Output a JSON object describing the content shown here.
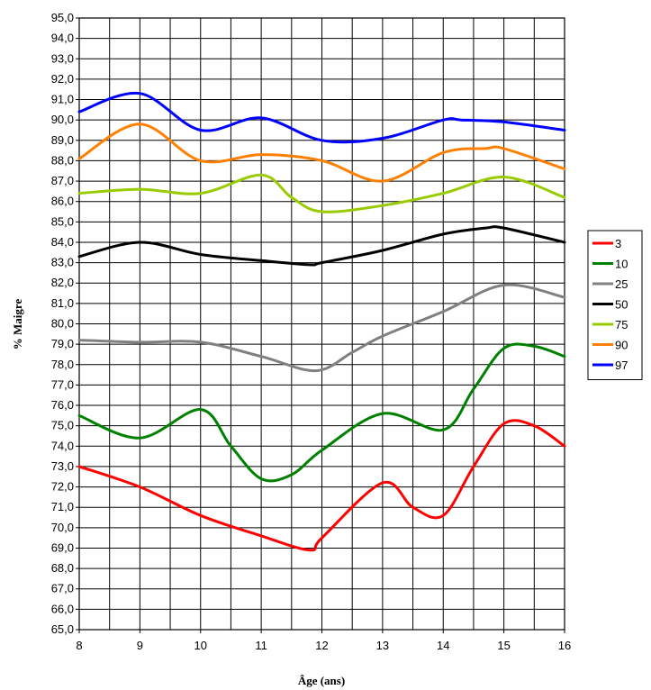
{
  "chart_data": {
    "type": "line",
    "title": "",
    "xlabel": "Âge (ans)",
    "ylabel": "% Maigre",
    "xlim": [
      8,
      16
    ],
    "ylim": [
      65,
      95
    ],
    "x_ticks": [
      "8",
      "9",
      "10",
      "11",
      "12",
      "13",
      "14",
      "15",
      "16"
    ],
    "y_ticks": [
      "65,0",
      "66,0",
      "67,0",
      "68,0",
      "69,0",
      "70,0",
      "71,0",
      "72,0",
      "73,0",
      "74,0",
      "75,0",
      "76,0",
      "77,0",
      "78,0",
      "79,0",
      "80,0",
      "81,0",
      "82,0",
      "83,0",
      "84,0",
      "85,0",
      "86,0",
      "87,0",
      "88,0",
      "89,0",
      "90,0",
      "91,0",
      "92,0",
      "93,0",
      "94,0",
      "95,0"
    ],
    "grid": true,
    "x_grid_step": 0.5,
    "legend_position": "right",
    "series": [
      {
        "name": "3",
        "color": "#ff0000",
        "x": [
          8,
          9,
          10,
          11,
          11.8,
          12,
          13,
          13.5,
          14,
          14.5,
          15,
          15.5,
          16
        ],
        "y": [
          73.0,
          72.0,
          70.6,
          69.6,
          68.9,
          69.5,
          72.2,
          71.0,
          70.6,
          73.0,
          75.1,
          75.0,
          74.0
        ]
      },
      {
        "name": "10",
        "color": "#008000",
        "x": [
          8,
          9,
          10,
          10.5,
          11,
          11.5,
          12,
          13,
          14,
          14.5,
          15,
          15.5,
          16
        ],
        "y": [
          75.5,
          74.4,
          75.8,
          74.0,
          72.4,
          72.6,
          73.8,
          75.6,
          74.8,
          76.8,
          78.8,
          78.9,
          78.4
        ]
      },
      {
        "name": "25",
        "color": "#808080",
        "x": [
          8,
          9,
          10,
          11,
          11.9,
          12.5,
          13,
          14,
          15,
          16
        ],
        "y": [
          79.2,
          79.1,
          79.1,
          78.4,
          77.7,
          78.6,
          79.4,
          80.6,
          81.9,
          81.3
        ]
      },
      {
        "name": "50",
        "color": "#000000",
        "x": [
          8,
          9,
          10,
          11,
          11.8,
          12,
          13,
          14,
          14.7,
          15,
          16
        ],
        "y": [
          83.3,
          84.0,
          83.4,
          83.1,
          82.9,
          83.0,
          83.6,
          84.4,
          84.7,
          84.7,
          84.0
        ]
      },
      {
        "name": "75",
        "color": "#99cc00",
        "x": [
          8,
          9,
          10,
          11,
          11.5,
          12,
          13,
          14,
          15,
          16
        ],
        "y": [
          86.4,
          86.6,
          86.4,
          87.3,
          86.2,
          85.5,
          85.8,
          86.4,
          87.2,
          86.2
        ]
      },
      {
        "name": "90",
        "color": "#ff8000",
        "x": [
          8,
          9,
          10,
          11,
          12,
          13,
          14,
          14.7,
          15,
          16
        ],
        "y": [
          88.1,
          89.8,
          88.0,
          88.3,
          88.0,
          87.0,
          88.4,
          88.6,
          88.6,
          87.6
        ]
      },
      {
        "name": "97",
        "color": "#0000ff",
        "x": [
          8,
          9,
          10,
          11,
          12,
          13,
          14,
          14.3,
          15,
          16
        ],
        "y": [
          90.4,
          91.3,
          89.5,
          90.1,
          89.0,
          89.1,
          90.0,
          90.0,
          89.9,
          89.5
        ]
      }
    ]
  }
}
